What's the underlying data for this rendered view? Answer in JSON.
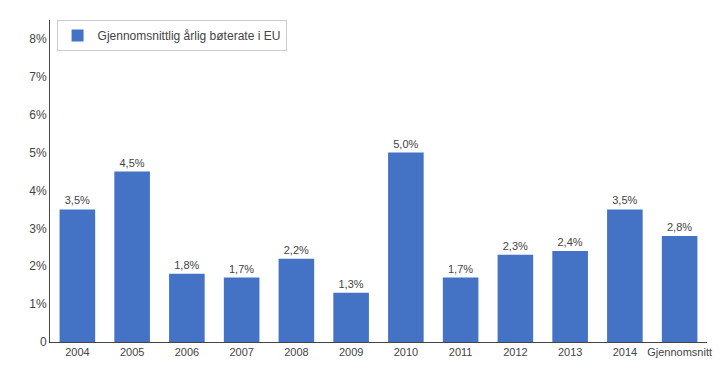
{
  "chart_data": {
    "type": "bar",
    "categories": [
      "2004",
      "2005",
      "2006",
      "2007",
      "2008",
      "2009",
      "2010",
      "2011",
      "2012",
      "2013",
      "2014",
      "Gjennomsnitt"
    ],
    "series": [
      {
        "name": "Gjennomsnittlig årlig bøterate i EU",
        "color": "#4472C4",
        "values": [
          3.5,
          4.5,
          1.8,
          1.7,
          2.2,
          1.3,
          5.0,
          1.7,
          2.3,
          2.4,
          3.5,
          2.8
        ],
        "value_labels": [
          "3,5%",
          "4,5%",
          "1,8%",
          "1,7%",
          "2,2%",
          "1,3%",
          "5,0%",
          "1,7%",
          "2,3%",
          "2,4%",
          "3,5%",
          "2,8%"
        ]
      }
    ],
    "ylim": [
      0,
      8.5
    ],
    "yticks": [
      0,
      {
        "value": 1,
        "label": "1%"
      },
      {
        "value": 2,
        "label": "2%"
      },
      {
        "value": 3,
        "label": "3%"
      },
      {
        "value": 4,
        "label": "4%"
      },
      {
        "value": 5,
        "label": "5%"
      },
      {
        "value": 6,
        "label": "6%"
      },
      {
        "value": 7,
        "label": "7%"
      },
      {
        "value": 8,
        "label": "8%"
      }
    ],
    "grid": false,
    "legend": "upper left",
    "data_labels": true
  }
}
